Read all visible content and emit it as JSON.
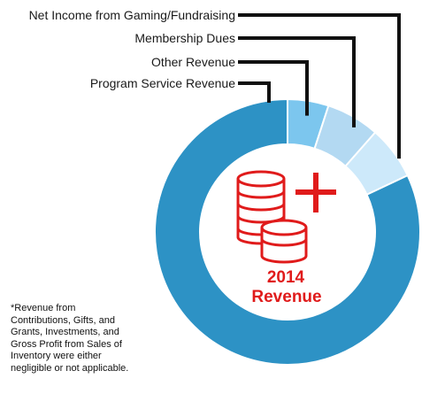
{
  "chart_data": {
    "type": "pie",
    "title": "2014 Revenue",
    "center_label": [
      "2014",
      "Revenue"
    ],
    "categories": [
      "Net Income from Gaming/Fundraising",
      "Membership Dues",
      "Other Revenue",
      "Program Service Revenue"
    ],
    "values": [
      6.5,
      6.5,
      5,
      82
    ],
    "units": "percent (estimated)",
    "colors": [
      "#cde9fa",
      "#b3d9f2",
      "#7cc6ee",
      "#2d92c5"
    ],
    "hole": "donut",
    "legend_placement": "top-left with leader lines"
  },
  "footnote": [
    "*Revenue from",
    "Contributions, Gifts, and",
    "Grants, Investments, and",
    "Gross Profit from Sales of",
    "Inventory were either",
    "negligible or not applicable."
  ],
  "colors": {
    "accent": "#e01b1b",
    "leader": "#111111"
  },
  "icon": "coins-plus-icon"
}
